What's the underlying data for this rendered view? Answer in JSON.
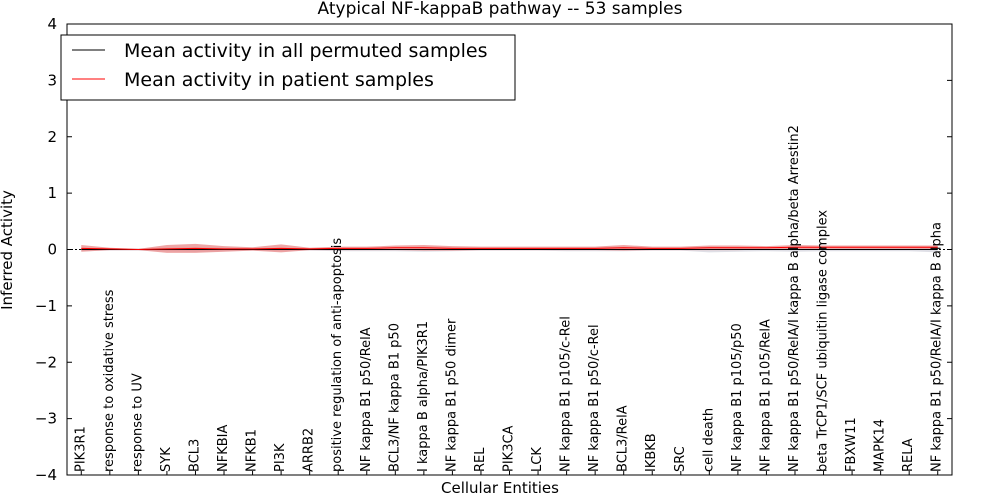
{
  "chart_data": {
    "type": "line",
    "title": "Atypical NF-kappaB pathway -- 53 samples",
    "xlabel": "Cellular Entities",
    "ylabel": "Inferred Activity",
    "ylim": [
      -4,
      4
    ],
    "yticks": [
      -4,
      -3,
      -2,
      -1,
      0,
      1,
      2,
      3,
      4
    ],
    "ytick_labels": [
      "−4",
      "−3",
      "−2",
      "−1",
      "0",
      "1",
      "2",
      "3",
      "4"
    ],
    "xlim": [
      -0.5,
      30.5
    ],
    "legend_position": "top-left",
    "categories": [
      "PIK3R1",
      "response to oxidative stress",
      "response to UV",
      "SYK",
      "BCL3",
      "NFKBIA",
      "NFKB1",
      "PI3K",
      "ARRB2",
      "positive regulation of anti-apoptosis",
      "NF kappa B1 p50/RelA",
      "BCL3/NF kappa B1 p50",
      "I kappa B alpha/PIK3R1",
      "NF kappa B1 p50 dimer",
      "REL",
      "PIK3CA",
      "LCK",
      "NF kappa B1 p105/c-Rel",
      "NF kappa B1 p50/c-Rel",
      "BCL3/RelA",
      "IKBKB",
      "SRC",
      "cell death",
      "NF kappa B1 p105/p50",
      "NF kappa B1 p105/RelA",
      "NF kappa B1 p50/RelA/I kappa B alpha/beta Arrestin2",
      "beta TrCP1/SCF ubiquitin ligase complex",
      "FBXW11",
      "MAPK14",
      "RELA",
      "NF kappa B1 p50/RelA/I kappa B alpha"
    ],
    "series": [
      {
        "name": "Mean activity in all permuted samples",
        "color": "#000000",
        "band_color": "#b8b8c8",
        "values": [
          0,
          0,
          0,
          0,
          0,
          0,
          0,
          0,
          0,
          0,
          0,
          0,
          0,
          0,
          0,
          0,
          0,
          0,
          0,
          0,
          0,
          0,
          0,
          0,
          0,
          0,
          0,
          0,
          0,
          0,
          0
        ],
        "spread": [
          0.03,
          0.02,
          0.02,
          0.03,
          0.04,
          0.03,
          0.02,
          0.03,
          0.02,
          0.03,
          0.03,
          0.03,
          0.04,
          0.03,
          0.02,
          0.02,
          0.02,
          0.03,
          0.03,
          0.03,
          0.02,
          0.02,
          0.05,
          0.04,
          0.03,
          0.04,
          0.03,
          0.03,
          0.03,
          0.03,
          0.05
        ]
      },
      {
        "name": "Mean activity in patient samples",
        "color": "#ff0000",
        "band_color": "#e88080",
        "values": [
          0.02,
          0.01,
          0.0,
          0.01,
          0.02,
          0.01,
          0.01,
          0.02,
          0.01,
          0.02,
          0.02,
          0.03,
          0.03,
          0.02,
          0.02,
          0.02,
          0.02,
          0.02,
          0.02,
          0.03,
          0.02,
          0.02,
          0.03,
          0.03,
          0.03,
          0.04,
          0.04,
          0.04,
          0.04,
          0.04,
          0.04
        ],
        "spread": [
          0.06,
          0.02,
          0.01,
          0.07,
          0.08,
          0.05,
          0.03,
          0.07,
          0.02,
          0.03,
          0.03,
          0.04,
          0.05,
          0.04,
          0.03,
          0.03,
          0.03,
          0.03,
          0.03,
          0.05,
          0.03,
          0.03,
          0.04,
          0.04,
          0.03,
          0.04,
          0.03,
          0.03,
          0.03,
          0.03,
          0.03
        ]
      }
    ]
  }
}
